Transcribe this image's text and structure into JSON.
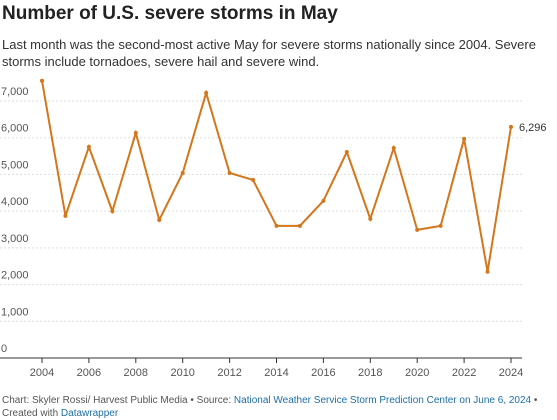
{
  "chart_data": {
    "type": "line",
    "title": "Number of U.S. severe storms in May",
    "subtitle": "Last month was the second-most active May for severe storms nationally since 2004. Severe storms include tornadoes, severe hail and severe wind.",
    "x": [
      2004,
      2005,
      2006,
      2007,
      2008,
      2009,
      2010,
      2011,
      2012,
      2013,
      2014,
      2015,
      2016,
      2017,
      2018,
      2019,
      2020,
      2021,
      2022,
      2023,
      2024
    ],
    "series": [
      {
        "name": "Severe storms",
        "color": "#d4761b",
        "values": [
          7550,
          3870,
          5750,
          4000,
          6130,
          3760,
          5040,
          7220,
          5040,
          4850,
          3600,
          3600,
          4280,
          5610,
          3790,
          5720,
          3490,
          3600,
          5970,
          2350,
          6296
        ],
        "value_labels": [
          null,
          null,
          null,
          null,
          null,
          null,
          null,
          null,
          null,
          null,
          null,
          null,
          null,
          null,
          null,
          null,
          null,
          null,
          null,
          null,
          "6,296"
        ]
      }
    ],
    "xlim": [
      2004,
      2024
    ],
    "xticks": [
      2004,
      2006,
      2008,
      2010,
      2012,
      2014,
      2016,
      2018,
      2020,
      2022,
      2024
    ],
    "ylim": [
      0,
      7000
    ],
    "yticks": [
      0,
      {
        "value": 1000,
        "label": "1,000"
      },
      {
        "value": 2000,
        "label": "2,000"
      },
      {
        "value": 3000,
        "label": "3,000"
      },
      {
        "value": 4000,
        "label": "4,000"
      },
      {
        "value": 5000,
        "label": "5,000"
      },
      {
        "value": 6000,
        "label": "6,000"
      },
      {
        "value": 7000,
        "label": "7,000"
      }
    ],
    "grid": true,
    "footer": {
      "credit": "Chart: Skyler Rossi/ Harvest Public Media • Source:",
      "source": "National Weather Service Storm Prediction Center on June 6, 2024",
      "sep": "•",
      "created": "Created with",
      "tool": "Datawrapper"
    }
  }
}
